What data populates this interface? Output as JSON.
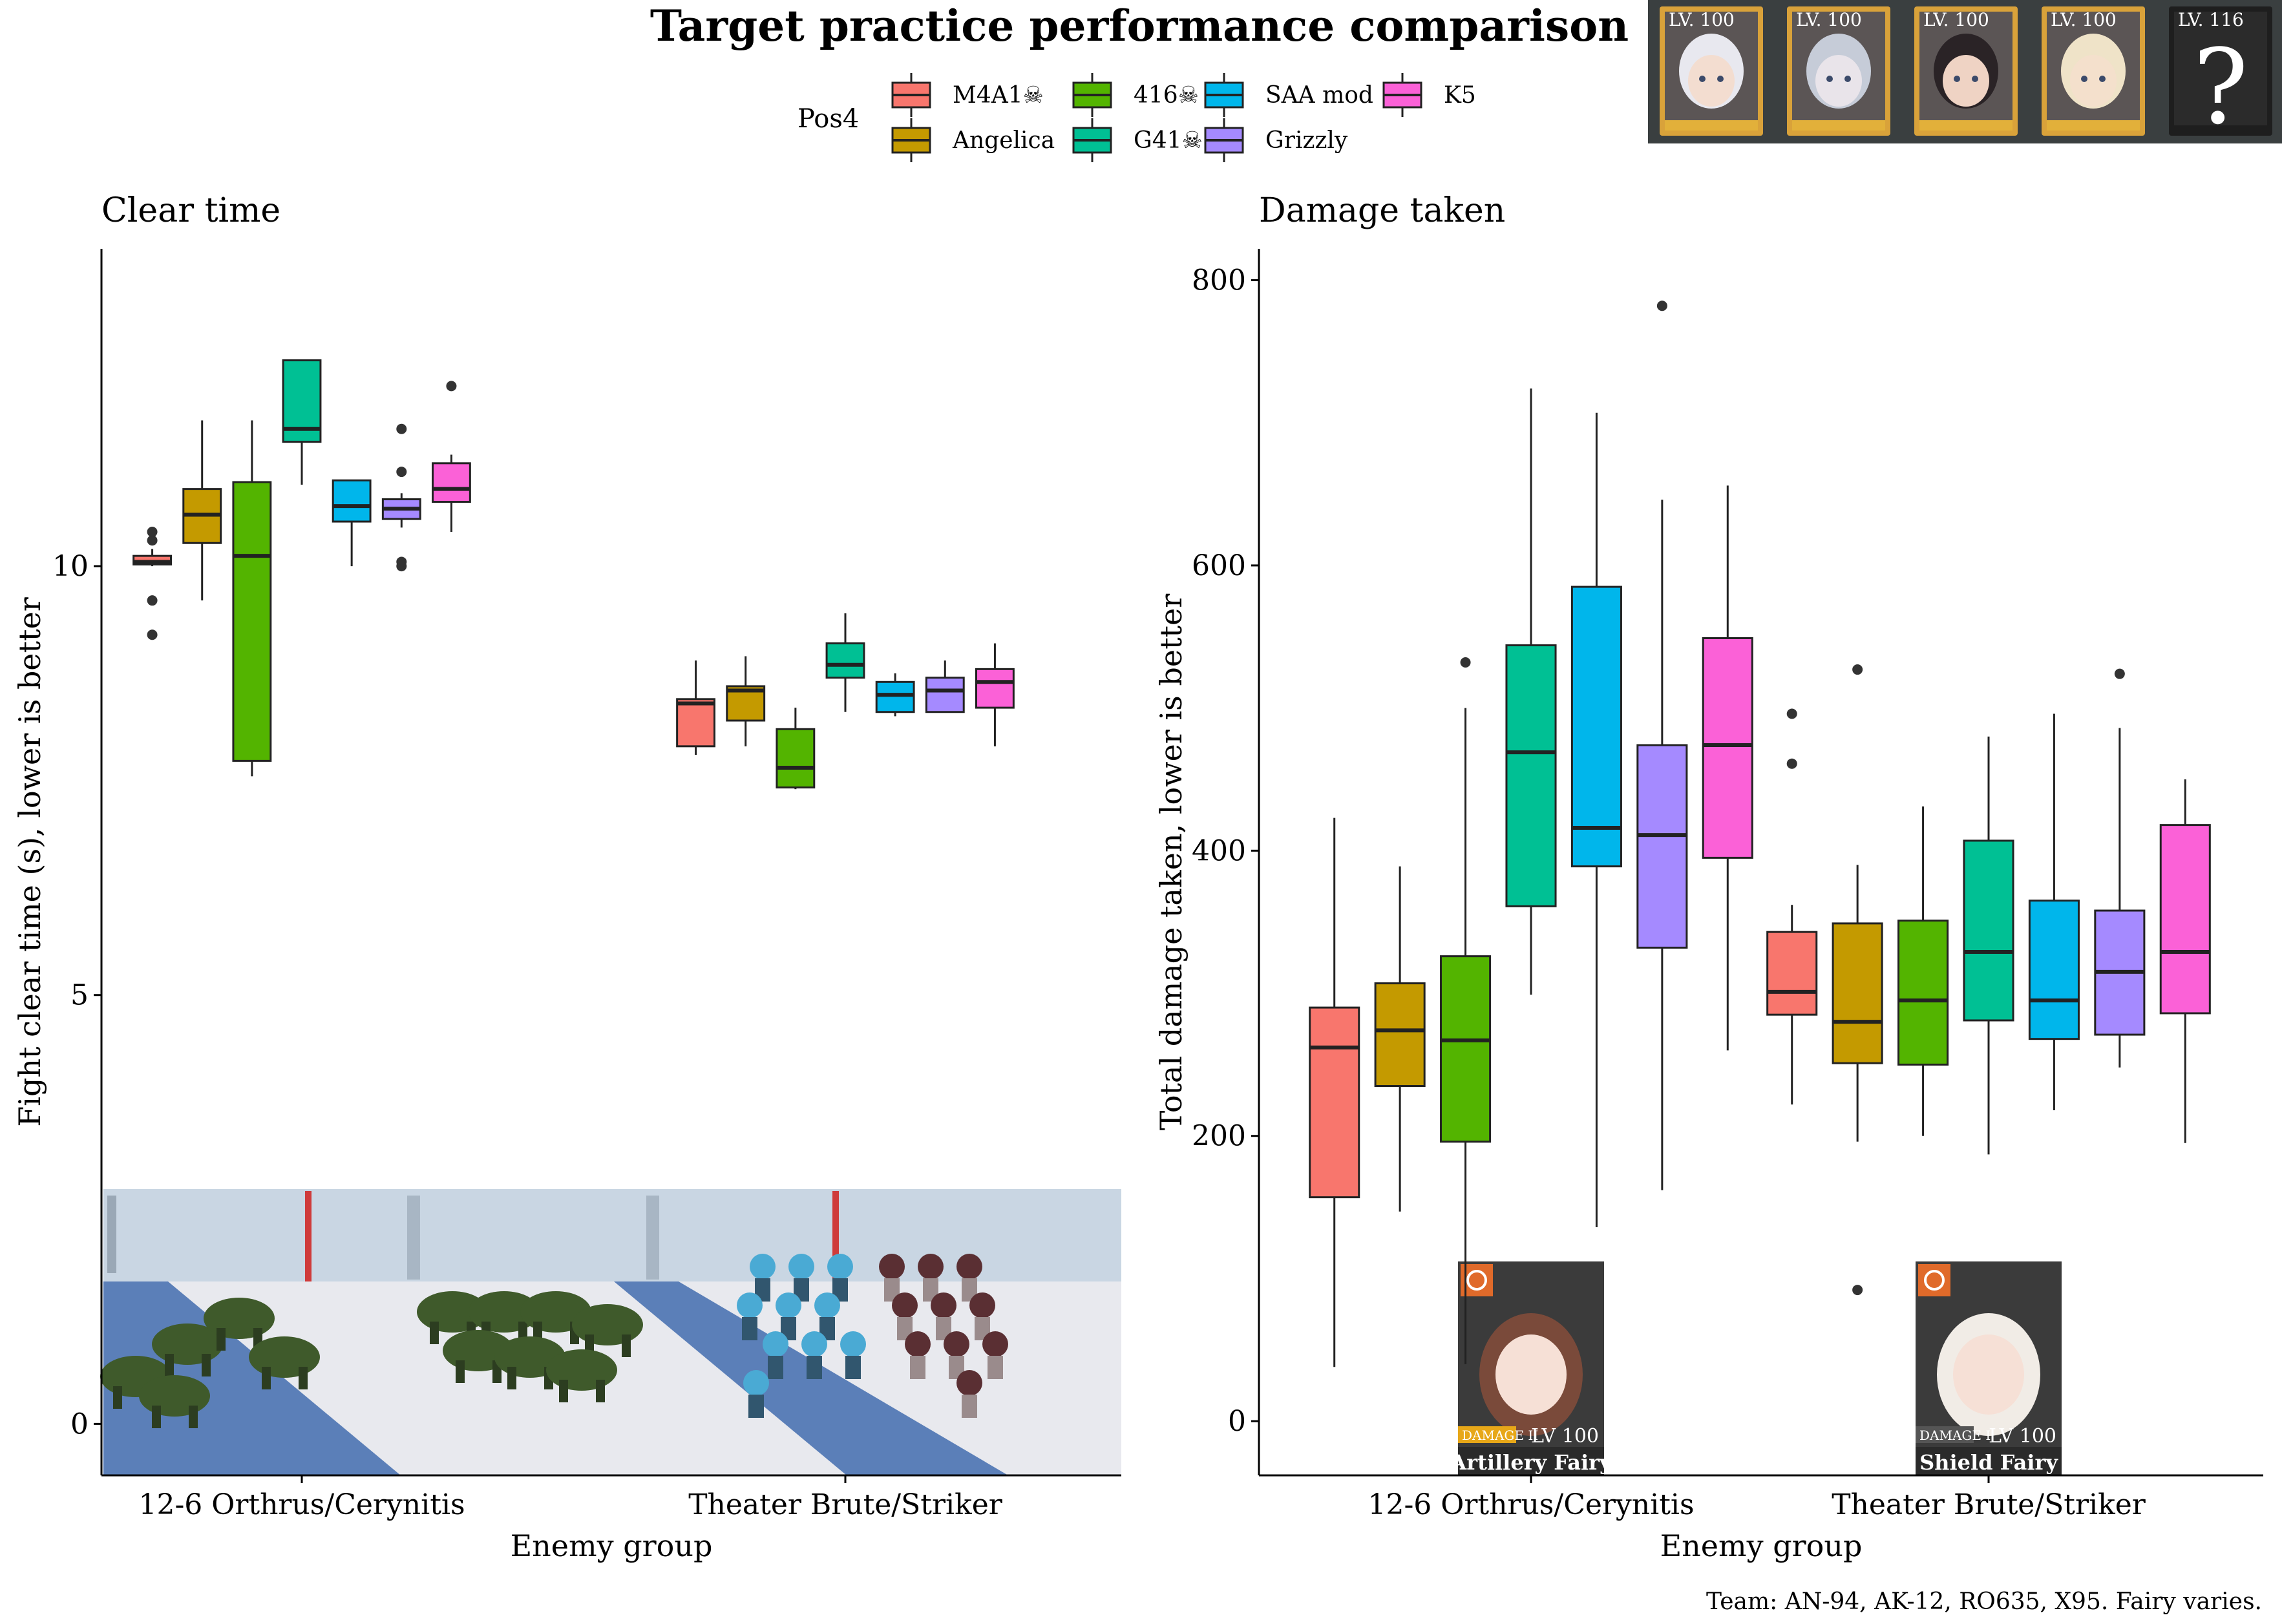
{
  "title": "Target practice performance comparison",
  "caption": "Team: AN-94, AK-12, RO635, X95. Fairy varies.",
  "legend": {
    "title": "Pos4",
    "entries": [
      {
        "label": "M4A1☠",
        "color": "#F8766D"
      },
      {
        "label": "Angelica",
        "color": "#C49A00"
      },
      {
        "label": "416☠",
        "color": "#53B400"
      },
      {
        "label": "G41☠",
        "color": "#00C094"
      },
      {
        "label": "SAA mod",
        "color": "#00B6EB"
      },
      {
        "label": "Grizzly",
        "color": "#A58AFF"
      },
      {
        "label": "K5",
        "color": "#FB61D7"
      }
    ]
  },
  "team_strip": {
    "levels": [
      "LV. 100",
      "LV. 100",
      "LV. 100",
      "LV. 100",
      "LV. 116"
    ],
    "unknown_glyph": "?"
  },
  "fairy_cards": [
    {
      "name": "Artillery Fairy",
      "skill": "DAMAGE II",
      "level": "LV 100"
    },
    {
      "name": "Shield Fairy",
      "skill": "DAMAGE I",
      "level": "LV 100"
    }
  ],
  "chart_data": [
    {
      "type": "box",
      "subtitle": "Clear time",
      "xlabel": "Enemy group",
      "ylabel": "Fight clear time (s), lower is better",
      "ylim": [
        -0.6,
        13.7
      ],
      "yticks": [
        0,
        5,
        10
      ],
      "categories": [
        "12-6 Orthrus/Cerynitis",
        "Theater Brute/Striker"
      ],
      "grid": false,
      "series": [
        {
          "name": "M4A1☠",
          "boxes": [
            {
              "min": 10.0,
              "q1": 10.02,
              "median": 10.05,
              "q3": 10.12,
              "max": 10.2,
              "outliers": [
                10.3,
                10.4,
                9.6,
                9.2
              ]
            },
            {
              "min": 7.8,
              "q1": 7.9,
              "median": 8.4,
              "q3": 8.45,
              "max": 8.9,
              "outliers": []
            }
          ]
        },
        {
          "name": "Angelica",
          "boxes": [
            {
              "min": 9.6,
              "q1": 10.27,
              "median": 10.6,
              "q3": 10.9,
              "max": 11.7,
              "outliers": []
            },
            {
              "min": 7.9,
              "q1": 8.2,
              "median": 8.55,
              "q3": 8.6,
              "max": 8.95,
              "outliers": []
            }
          ]
        },
        {
          "name": "416☠",
          "boxes": [
            {
              "min": 7.55,
              "q1": 7.73,
              "median": 10.12,
              "q3": 10.98,
              "max": 11.7,
              "outliers": []
            },
            {
              "min": 7.4,
              "q1": 7.42,
              "median": 7.65,
              "q3": 8.1,
              "max": 8.35,
              "outliers": []
            }
          ]
        },
        {
          "name": "G41☠",
          "boxes": [
            {
              "min": 10.95,
              "q1": 11.45,
              "median": 11.6,
              "q3": 12.4,
              "max": 12.4,
              "outliers": []
            },
            {
              "min": 8.3,
              "q1": 8.7,
              "median": 8.85,
              "q3": 9.1,
              "max": 9.45,
              "outliers": []
            }
          ]
        },
        {
          "name": "SAA mod",
          "boxes": [
            {
              "min": 10.0,
              "q1": 10.52,
              "median": 10.7,
              "q3": 11.0,
              "max": 11.0,
              "outliers": []
            },
            {
              "min": 8.25,
              "q1": 8.3,
              "median": 8.5,
              "q3": 8.65,
              "max": 8.75,
              "outliers": []
            }
          ]
        },
        {
          "name": "Grizzly",
          "boxes": [
            {
              "min": 10.45,
              "q1": 10.55,
              "median": 10.67,
              "q3": 10.78,
              "max": 10.85,
              "outliers": [
                11.6,
                11.1,
                10.0,
                10.05
              ]
            },
            {
              "min": 8.3,
              "q1": 8.3,
              "median": 8.55,
              "q3": 8.7,
              "max": 8.9,
              "outliers": []
            }
          ]
        },
        {
          "name": "K5",
          "boxes": [
            {
              "min": 10.4,
              "q1": 10.75,
              "median": 10.9,
              "q3": 11.2,
              "max": 11.3,
              "outliers": [
                12.1
              ]
            },
            {
              "min": 7.9,
              "q1": 8.35,
              "median": 8.65,
              "q3": 8.8,
              "max": 9.1,
              "outliers": []
            }
          ]
        }
      ]
    },
    {
      "type": "box",
      "subtitle": "Damage taken",
      "xlabel": "Enemy group",
      "ylabel": "Total damage taken, lower is better",
      "ylim": [
        -38,
        822
      ],
      "yticks": [
        0,
        200,
        400,
        600,
        800
      ],
      "categories": [
        "12-6 Orthrus/Cerynitis",
        "Theater Brute/Striker"
      ],
      "grid": false,
      "series": [
        {
          "name": "M4A1☠",
          "boxes": [
            {
              "min": 38,
              "q1": 157,
              "median": 262,
              "q3": 290,
              "max": 423,
              "outliers": []
            },
            {
              "min": 222,
              "q1": 285,
              "median": 301,
              "q3": 343,
              "max": 362,
              "outliers": [
                496,
                461
              ]
            }
          ]
        },
        {
          "name": "Angelica",
          "boxes": [
            {
              "min": 147,
              "q1": 235,
              "median": 274,
              "q3": 307,
              "max": 389,
              "outliers": []
            },
            {
              "min": 196,
              "q1": 251,
              "median": 280,
              "q3": 349,
              "max": 390,
              "outliers": [
                527,
                92
              ]
            }
          ]
        },
        {
          "name": "416☠",
          "boxes": [
            {
              "min": 40,
              "q1": 196,
              "median": 267,
              "q3": 326,
              "max": 500,
              "outliers": [
                532
              ]
            },
            {
              "min": 200,
              "q1": 250,
              "median": 295,
              "q3": 351,
              "max": 431,
              "outliers": []
            }
          ]
        },
        {
          "name": "G41☠",
          "boxes": [
            {
              "min": 299,
              "q1": 361,
              "median": 469,
              "q3": 544,
              "max": 724,
              "outliers": []
            },
            {
              "min": 187,
              "q1": 281,
              "median": 329,
              "q3": 407,
              "max": 480,
              "outliers": []
            }
          ]
        },
        {
          "name": "SAA mod",
          "boxes": [
            {
              "min": 136,
              "q1": 389,
              "median": 416,
              "q3": 585,
              "max": 707,
              "outliers": []
            },
            {
              "min": 218,
              "q1": 268,
              "median": 295,
              "q3": 365,
              "max": 496,
              "outliers": []
            }
          ]
        },
        {
          "name": "Grizzly",
          "boxes": [
            {
              "min": 162,
              "q1": 332,
              "median": 411,
              "q3": 474,
              "max": 646,
              "outliers": [
                782
              ]
            },
            {
              "min": 248,
              "q1": 271,
              "median": 315,
              "q3": 358,
              "max": 486,
              "outliers": [
                524
              ]
            }
          ]
        },
        {
          "name": "K5",
          "boxes": [
            {
              "min": 260,
              "q1": 395,
              "median": 474,
              "q3": 549,
              "max": 656,
              "outliers": []
            },
            {
              "min": 195,
              "q1": 286,
              "median": 329,
              "q3": 418,
              "max": 450,
              "outliers": []
            }
          ]
        }
      ]
    }
  ]
}
